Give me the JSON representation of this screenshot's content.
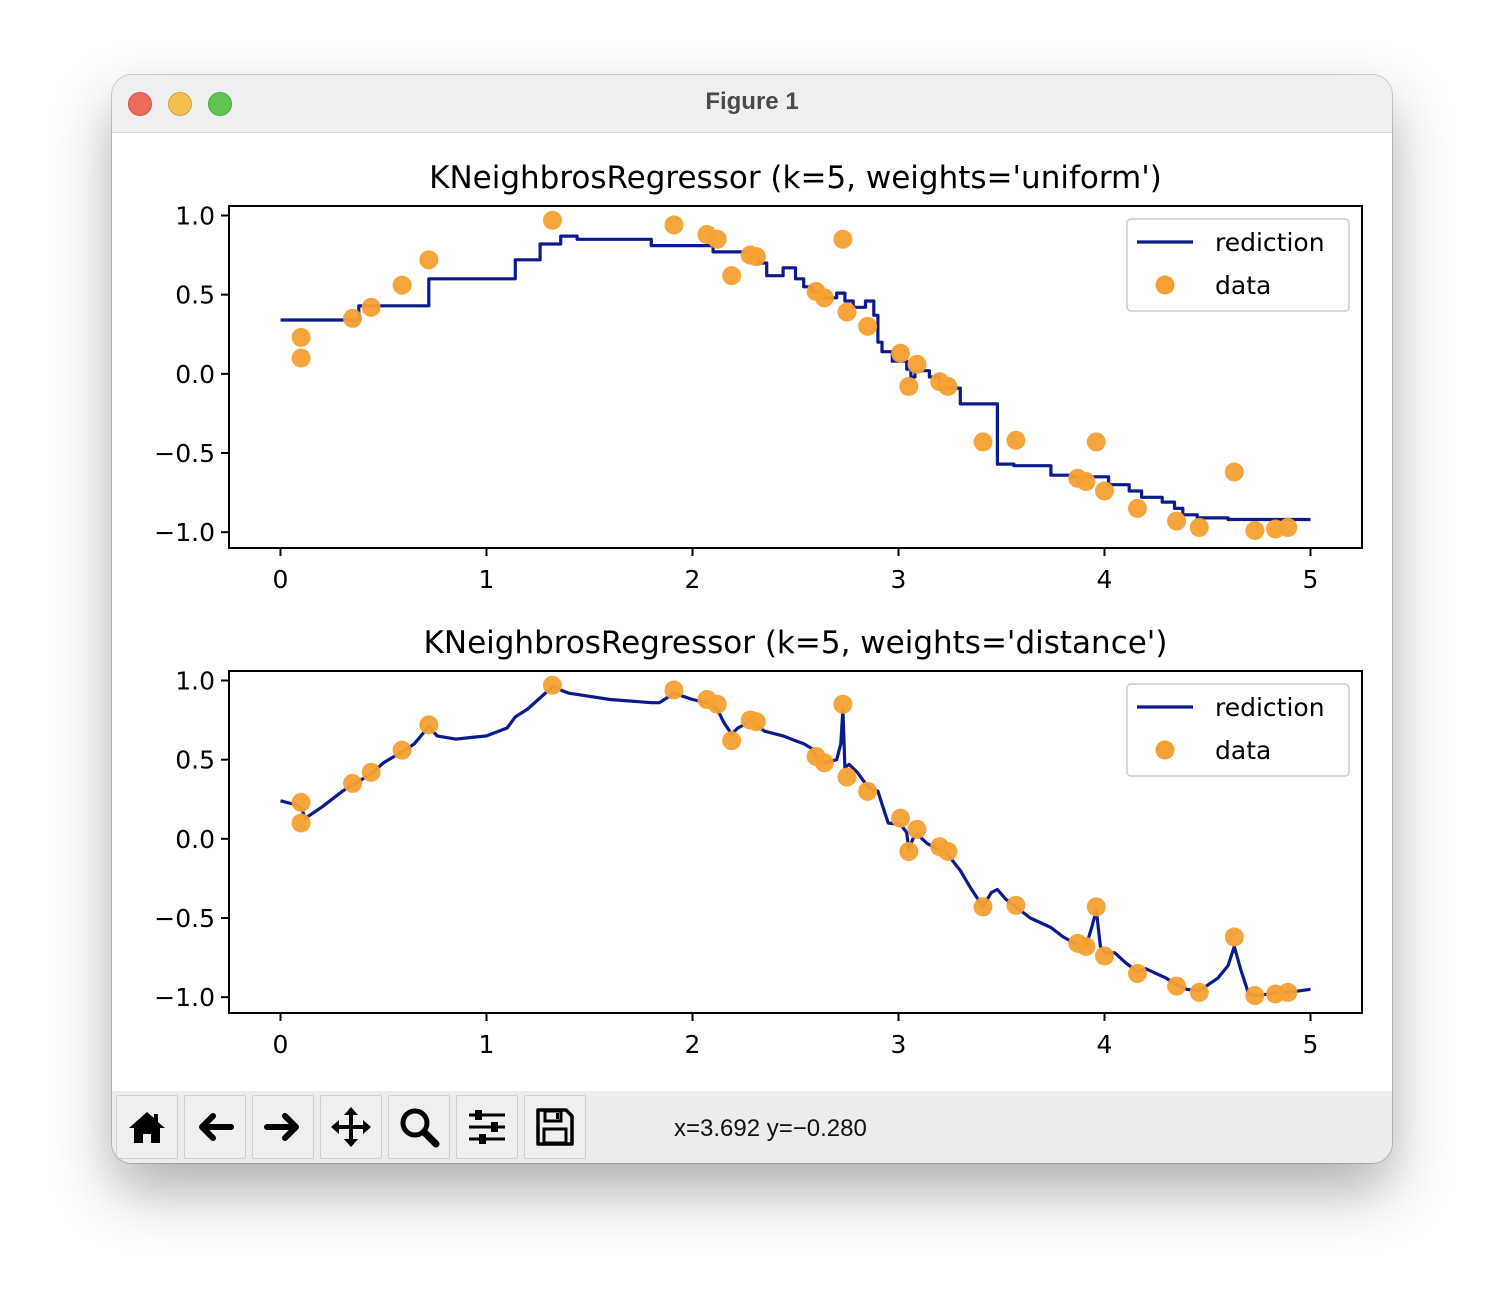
{
  "window": {
    "title": "Figure 1"
  },
  "toolbar": {
    "buttons": [
      {
        "name": "home-button",
        "icon": "home-icon"
      },
      {
        "name": "back-button",
        "icon": "arrow-left-icon"
      },
      {
        "name": "forward-button",
        "icon": "arrow-right-icon"
      },
      {
        "name": "pan-button",
        "icon": "move-icon"
      },
      {
        "name": "zoom-button",
        "icon": "magnifier-icon"
      },
      {
        "name": "configure-subplots-button",
        "icon": "sliders-icon"
      },
      {
        "name": "save-button",
        "icon": "floppy-disk-icon"
      }
    ],
    "coordinates": "x=3.692 y=−0.280"
  },
  "colors": {
    "prediction": "#0d1a8c",
    "data": "#f5a031"
  },
  "chart_data": [
    {
      "type": "line+scatter",
      "title": "KNeighbrosRegressor (k=5, weights='uniform')",
      "xlim": [
        -0.25,
        5.25
      ],
      "ylim": [
        -1.1,
        1.06
      ],
      "xticks": [
        0,
        1,
        2,
        3,
        4,
        5
      ],
      "yticks": [
        1.0,
        0.5,
        0.0,
        -0.5,
        -1.0
      ],
      "xtick_labels": [
        "0",
        "1",
        "2",
        "3",
        "4",
        "5"
      ],
      "ytick_labels": [
        "1.0",
        "0.5",
        "0.0",
        "−0.5",
        "−1.0"
      ],
      "legend": {
        "location": "upper right",
        "entries": [
          "rediction",
          "data"
        ]
      },
      "series": [
        {
          "name": "rediction",
          "type": "line",
          "x": [
            0,
            0.38,
            0.38,
            0.72,
            0.72,
            1.14,
            1.14,
            1.26,
            1.26,
            1.36,
            1.36,
            1.44,
            1.44,
            1.8,
            1.8,
            2.1,
            2.1,
            2.28,
            2.28,
            2.32,
            2.32,
            2.36,
            2.36,
            2.44,
            2.44,
            2.5,
            2.5,
            2.54,
            2.54,
            2.58,
            2.58,
            2.62,
            2.62,
            2.7,
            2.7,
            2.74,
            2.74,
            2.78,
            2.78,
            2.84,
            2.84,
            2.88,
            2.88,
            2.9,
            2.9,
            2.92,
            2.92,
            2.97,
            2.97,
            3.04,
            3.04,
            3.06,
            3.06,
            3.08,
            3.08,
            3.15,
            3.15,
            3.2,
            3.2,
            3.3,
            3.3,
            3.48,
            3.48,
            3.56,
            3.56,
            3.74,
            3.74,
            3.84,
            3.84,
            4.02,
            4.02,
            4.12,
            4.12,
            4.18,
            4.18,
            4.28,
            4.28,
            4.34,
            4.34,
            4.38,
            4.38,
            4.45,
            4.45,
            4.6,
            4.6,
            5.0
          ],
          "y": [
            0.34,
            0.34,
            0.43,
            0.43,
            0.6,
            0.6,
            0.72,
            0.72,
            0.82,
            0.82,
            0.87,
            0.87,
            0.85,
            0.85,
            0.81,
            0.81,
            0.77,
            0.77,
            0.74,
            0.74,
            0.7,
            0.7,
            0.62,
            0.62,
            0.67,
            0.67,
            0.6,
            0.6,
            0.55,
            0.55,
            0.52,
            0.52,
            0.48,
            0.48,
            0.51,
            0.51,
            0.46,
            0.46,
            0.42,
            0.42,
            0.46,
            0.46,
            0.37,
            0.37,
            0.2,
            0.2,
            0.14,
            0.14,
            0.08,
            0.08,
            0.03,
            0.03,
            -0.02,
            -0.02,
            0.02,
            0.02,
            -0.02,
            -0.02,
            -0.09,
            -0.09,
            -0.19,
            -0.19,
            -0.57,
            -0.57,
            -0.58,
            -0.58,
            -0.64,
            -0.64,
            -0.65,
            -0.65,
            -0.7,
            -0.7,
            -0.74,
            -0.74,
            -0.78,
            -0.78,
            -0.81,
            -0.81,
            -0.85,
            -0.85,
            -0.89,
            -0.89,
            -0.91,
            -0.91,
            -0.92,
            -0.92
          ]
        },
        {
          "name": "data",
          "type": "scatter",
          "x": [
            0.1,
            0.1,
            0.35,
            0.44,
            0.59,
            0.72,
            1.32,
            1.91,
            2.07,
            2.12,
            2.19,
            2.28,
            2.31,
            2.6,
            2.64,
            2.73,
            2.75,
            2.85,
            3.01,
            3.05,
            3.09,
            3.2,
            3.24,
            3.41,
            3.57,
            3.87,
            3.91,
            3.96,
            4.0,
            4.16,
            4.35,
            4.46,
            4.63,
            4.73,
            4.83,
            4.89
          ],
          "y": [
            0.23,
            0.1,
            0.35,
            0.42,
            0.56,
            0.72,
            0.97,
            0.94,
            0.88,
            0.85,
            0.62,
            0.75,
            0.74,
            0.52,
            0.48,
            0.85,
            0.39,
            0.3,
            0.13,
            -0.08,
            0.06,
            -0.05,
            -0.08,
            -0.43,
            -0.42,
            -0.66,
            -0.68,
            -0.43,
            -0.74,
            -0.85,
            -0.93,
            -0.97,
            -0.62,
            -0.99,
            -0.98,
            -0.97
          ]
        }
      ]
    },
    {
      "type": "line+scatter",
      "title": "KNeighbrosRegressor (k=5, weights='distance')",
      "xlim": [
        -0.25,
        5.25
      ],
      "ylim": [
        -1.1,
        1.06
      ],
      "xticks": [
        0,
        1,
        2,
        3,
        4,
        5
      ],
      "yticks": [
        1.0,
        0.5,
        0.0,
        -0.5,
        -1.0
      ],
      "xtick_labels": [
        "0",
        "1",
        "2",
        "3",
        "4",
        "5"
      ],
      "ytick_labels": [
        "1.0",
        "0.5",
        "0.0",
        "−0.5",
        "−1.0"
      ],
      "legend": {
        "location": "upper right",
        "entries": [
          "rediction",
          "data"
        ]
      },
      "series": [
        {
          "name": "rediction",
          "type": "line",
          "x": [
            0,
            0.06,
            0.1,
            0.12,
            0.2,
            0.3,
            0.35,
            0.44,
            0.5,
            0.59,
            0.65,
            0.72,
            0.76,
            0.85,
            1.0,
            1.1,
            1.14,
            1.2,
            1.32,
            1.4,
            1.6,
            1.8,
            1.84,
            1.91,
            2.0,
            2.07,
            2.1,
            2.12,
            2.15,
            2.19,
            2.22,
            2.28,
            2.31,
            2.35,
            2.44,
            2.5,
            2.54,
            2.58,
            2.6,
            2.64,
            2.7,
            2.72,
            2.73,
            2.74,
            2.76,
            2.8,
            2.85,
            2.9,
            2.92,
            2.95,
            3.01,
            3.04,
            3.05,
            3.07,
            3.09,
            3.14,
            3.2,
            3.24,
            3.3,
            3.35,
            3.41,
            3.45,
            3.48,
            3.52,
            3.57,
            3.64,
            3.74,
            3.8,
            3.87,
            3.91,
            3.94,
            3.96,
            3.98,
            4.0,
            4.05,
            4.1,
            4.16,
            4.2,
            4.3,
            4.35,
            4.4,
            4.46,
            4.55,
            4.6,
            4.63,
            4.66,
            4.7,
            4.73,
            4.8,
            4.83,
            4.89,
            5.0
          ],
          "y": [
            0.24,
            0.22,
            0.2,
            0.13,
            0.2,
            0.3,
            0.34,
            0.41,
            0.48,
            0.55,
            0.6,
            0.71,
            0.65,
            0.63,
            0.65,
            0.7,
            0.77,
            0.82,
            0.96,
            0.92,
            0.88,
            0.86,
            0.86,
            0.92,
            0.88,
            0.86,
            0.84,
            0.82,
            0.74,
            0.66,
            0.7,
            0.74,
            0.72,
            0.68,
            0.65,
            0.62,
            0.6,
            0.57,
            0.52,
            0.48,
            0.5,
            0.6,
            0.82,
            0.45,
            0.47,
            0.42,
            0.33,
            0.3,
            0.22,
            0.1,
            0.09,
            0.04,
            -0.07,
            0.0,
            0.03,
            -0.03,
            -0.07,
            -0.1,
            -0.2,
            -0.31,
            -0.43,
            -0.34,
            -0.32,
            -0.38,
            -0.43,
            -0.5,
            -0.56,
            -0.62,
            -0.67,
            -0.68,
            -0.55,
            -0.45,
            -0.68,
            -0.72,
            -0.72,
            -0.78,
            -0.84,
            -0.82,
            -0.88,
            -0.92,
            -0.95,
            -0.96,
            -0.88,
            -0.8,
            -0.68,
            -0.82,
            -0.98,
            -0.99,
            -0.98,
            -0.97,
            -0.97,
            -0.95
          ]
        },
        {
          "name": "data",
          "type": "scatter",
          "x": [
            0.1,
            0.1,
            0.35,
            0.44,
            0.59,
            0.72,
            1.32,
            1.91,
            2.07,
            2.12,
            2.19,
            2.28,
            2.31,
            2.6,
            2.64,
            2.73,
            2.75,
            2.85,
            3.01,
            3.05,
            3.09,
            3.2,
            3.24,
            3.41,
            3.57,
            3.87,
            3.91,
            3.96,
            4.0,
            4.16,
            4.35,
            4.46,
            4.63,
            4.73,
            4.83,
            4.89
          ],
          "y": [
            0.23,
            0.1,
            0.35,
            0.42,
            0.56,
            0.72,
            0.97,
            0.94,
            0.88,
            0.85,
            0.62,
            0.75,
            0.74,
            0.52,
            0.48,
            0.85,
            0.39,
            0.3,
            0.13,
            -0.08,
            0.06,
            -0.05,
            -0.08,
            -0.43,
            -0.42,
            -0.66,
            -0.68,
            -0.43,
            -0.74,
            -0.85,
            -0.93,
            -0.97,
            -0.62,
            -0.99,
            -0.98,
            -0.97
          ]
        }
      ]
    }
  ]
}
